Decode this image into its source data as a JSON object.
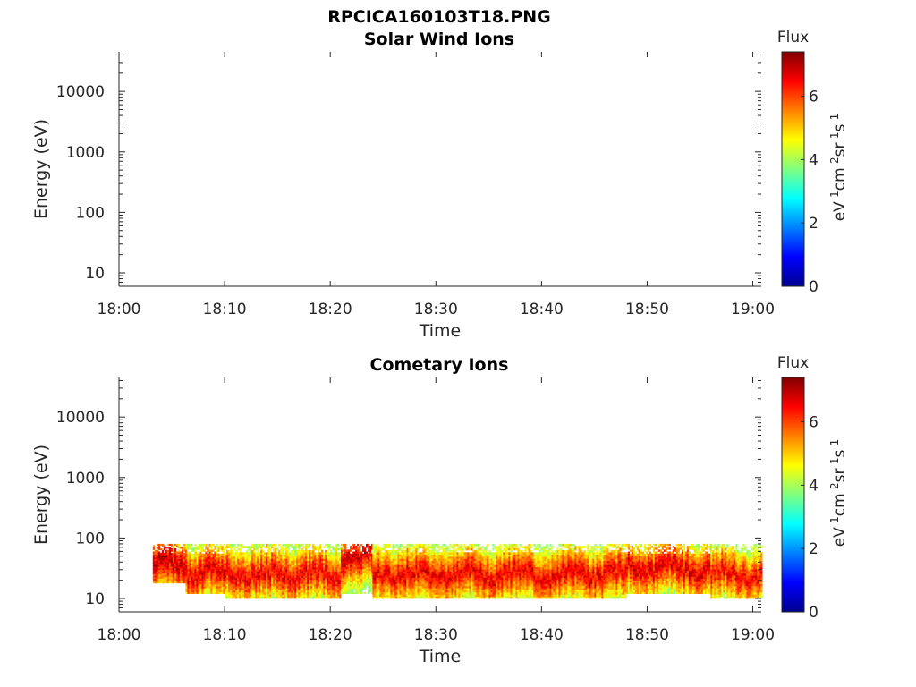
{
  "figure_title": "RPCICA160103T18.PNG",
  "colormap": [
    "#00008f",
    "#0000ff",
    "#0080ff",
    "#00ffff",
    "#80ff80",
    "#ffff00",
    "#ff8000",
    "#ff0000",
    "#800000"
  ],
  "chart_data": [
    {
      "type": "heatmap",
      "title": "Solar Wind Ions",
      "xlabel": "Time",
      "ylabel": "Energy (eV)",
      "x_ticks": [
        "18:00",
        "18:10",
        "18:20",
        "18:30",
        "18:40",
        "18:50",
        "19:00"
      ],
      "xlim_minutes": [
        0,
        60.8
      ],
      "y_scale": "log",
      "y_ticks": [
        10,
        100,
        1000,
        10000
      ],
      "y_tick_labels": [
        "10",
        "100",
        "1000",
        "10000"
      ],
      "ylim": [
        6,
        45000
      ],
      "colorbar": {
        "title": "Flux",
        "label": "eV-1cm-2sr-1s-1",
        "range": [
          0,
          7.4
        ],
        "ticks": [
          0,
          2,
          4,
          6
        ],
        "tick_labels": [
          "0",
          "2",
          "4",
          "6"
        ]
      },
      "segments": []
    },
    {
      "type": "heatmap",
      "title": "Cometary Ions",
      "xlabel": "Time",
      "ylabel": "Energy (eV)",
      "x_ticks": [
        "18:00",
        "18:10",
        "18:20",
        "18:30",
        "18:40",
        "18:50",
        "19:00"
      ],
      "xlim_minutes": [
        0,
        60.8
      ],
      "y_scale": "log",
      "y_ticks": [
        10,
        100,
        1000,
        10000
      ],
      "y_tick_labels": [
        "10",
        "100",
        "1000",
        "10000"
      ],
      "ylim": [
        6,
        45000
      ],
      "colorbar": {
        "title": "Flux",
        "label": "eV-1cm-2sr-1s-1",
        "range": [
          0,
          7.4
        ],
        "ticks": [
          0,
          2,
          4,
          6
        ],
        "tick_labels": [
          "0",
          "2",
          "4",
          "6"
        ]
      },
      "segments": [
        {
          "t_start": 3.2,
          "t_end": 6.3,
          "e_min": 18,
          "e_max": 80,
          "peak_energy": 35,
          "peak_flux": 7.0
        },
        {
          "t_start": 6.3,
          "t_end": 10.0,
          "e_min": 12,
          "e_max": 80,
          "peak_energy": 28,
          "peak_flux": 6.8
        },
        {
          "t_start": 10.0,
          "t_end": 21.0,
          "e_min": 10,
          "e_max": 80,
          "peak_energy": 25,
          "peak_flux": 6.7
        },
        {
          "t_start": 21.0,
          "t_end": 24.0,
          "e_min": 12,
          "e_max": 80,
          "peak_energy": 45,
          "peak_flux": 6.9
        },
        {
          "t_start": 24.0,
          "t_end": 48.0,
          "e_min": 10,
          "e_max": 80,
          "peak_energy": 25,
          "peak_flux": 6.7
        },
        {
          "t_start": 48.0,
          "t_end": 56.0,
          "e_min": 12,
          "e_max": 80,
          "peak_energy": 32,
          "peak_flux": 6.8
        },
        {
          "t_start": 56.0,
          "t_end": 60.8,
          "e_min": 10,
          "e_max": 80,
          "peak_energy": 25,
          "peak_flux": 6.6
        }
      ]
    }
  ]
}
